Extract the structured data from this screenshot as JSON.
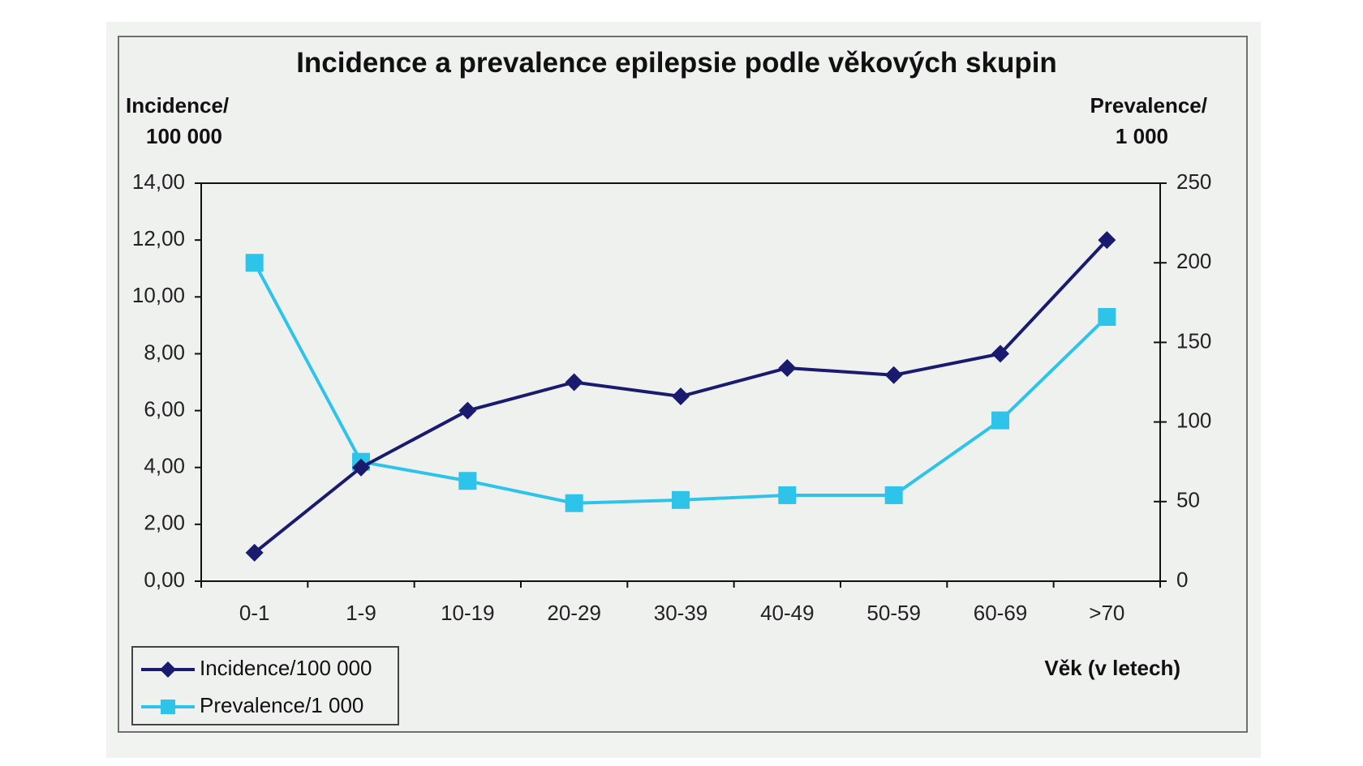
{
  "chart_data": {
    "type": "line",
    "title": "Incidence a prevalence epilepsie podle věkových skupin",
    "y_left_label_line1": "Incidence/",
    "y_left_label_line2": "100 000",
    "y_right_label_line1": "Prevalence/",
    "y_right_label_line2": "1 000",
    "xlabel": "Věk (v letech)",
    "categories": [
      "0-1",
      "1-9",
      "10-19",
      "20-29",
      "30-39",
      "40-49",
      "50-59",
      "60-69",
      ">70"
    ],
    "y_left_ticks": [
      "0,00",
      "2,00",
      "4,00",
      "6,00",
      "8,00",
      "10,00",
      "12,00",
      "14,00"
    ],
    "y_left_range": [
      0,
      14
    ],
    "y_right_ticks": [
      "0",
      "50",
      "100",
      "150",
      "200",
      "250"
    ],
    "y_right_range": [
      0,
      250
    ],
    "grid": false,
    "legend_position": "bottom-left",
    "series": [
      {
        "name": "Incidence/100 000",
        "axis": "left",
        "marker": "diamond",
        "color": "#1a1a6e",
        "values": [
          1.0,
          4.0,
          6.0,
          7.0,
          6.5,
          7.5,
          7.25,
          8.0,
          12.0
        ]
      },
      {
        "name": "Prevalence/1 000",
        "axis": "right",
        "marker": "square",
        "color": "#2ec4ea",
        "values": [
          200,
          75,
          63,
          49,
          51,
          54,
          54,
          101,
          166
        ]
      }
    ]
  }
}
